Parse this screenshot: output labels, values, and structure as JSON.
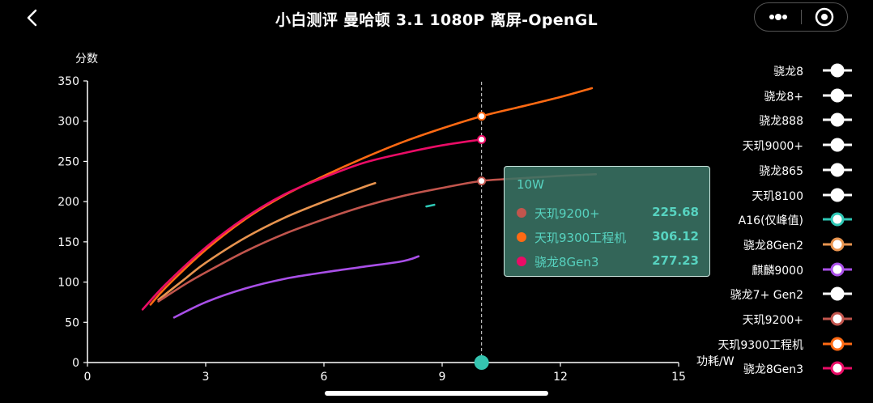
{
  "header": {
    "title": "小白测评 曼哈顿 3.1 1080P 离屏-OpenGL",
    "back_icon": "chevron-left-icon",
    "more_icon": "more-dots-icon",
    "close_icon": "target-close-icon"
  },
  "tooltip": {
    "title": "10W",
    "rows": [
      {
        "name": "天玑9200+",
        "value": "225.68",
        "color": "#c2554d"
      },
      {
        "name": "天玑9300工程机",
        "value": "306.12",
        "color": "#ff6a13"
      },
      {
        "name": "骁龙8Gen3",
        "value": "277.23",
        "color": "#ea0c66"
      }
    ]
  },
  "chart_data": {
    "type": "line",
    "ylabel": "分数",
    "xlabel": "功耗/W",
    "xlim": [
      0,
      15
    ],
    "ylim": [
      0,
      350
    ],
    "xticks": [
      0,
      3,
      6,
      9,
      12,
      15
    ],
    "yticks": [
      0,
      50,
      100,
      150,
      200,
      250,
      300,
      350
    ],
    "grid": false,
    "legend_position": "right",
    "crosshair_x": 10,
    "series": [
      {
        "name": "骁龙8",
        "color": "#ffffff",
        "active": false,
        "x": [],
        "y": []
      },
      {
        "name": "骁龙8+",
        "color": "#ffffff",
        "active": false,
        "x": [],
        "y": []
      },
      {
        "name": "骁龙888",
        "color": "#ffffff",
        "active": false,
        "x": [],
        "y": []
      },
      {
        "name": "天玑9000+",
        "color": "#ffffff",
        "active": false,
        "x": [],
        "y": []
      },
      {
        "name": "骁龙865",
        "color": "#ffffff",
        "active": false,
        "x": [],
        "y": []
      },
      {
        "name": "天玑8100",
        "color": "#ffffff",
        "active": false,
        "x": [],
        "y": []
      },
      {
        "name": "A16(仅峰值)",
        "color": "#2ec7b5",
        "active": true,
        "x": [
          8.6,
          8.8
        ],
        "y": [
          194,
          196
        ]
      },
      {
        "name": "骁龙8Gen2",
        "color": "#e8944f",
        "active": true,
        "x": [
          1.8,
          2.5,
          3.0,
          4.0,
          5.0,
          6.0,
          7.0,
          7.3
        ],
        "y": [
          78,
          105,
          124,
          155,
          180,
          200,
          218,
          223
        ]
      },
      {
        "name": "麒麟9000",
        "color": "#a94fe8",
        "active": true,
        "x": [
          2.2,
          3.0,
          4.0,
          5.0,
          6.0,
          7.0,
          8.0,
          8.4
        ],
        "y": [
          56,
          75,
          92,
          104,
          112,
          119,
          126,
          132
        ]
      },
      {
        "name": "骁龙7+ Gen2",
        "color": "#ffffff",
        "active": false,
        "x": [],
        "y": []
      },
      {
        "name": "天玑9200+",
        "color": "#c2554d",
        "active": true,
        "x": [
          1.8,
          2.5,
          3.0,
          4.0,
          5.0,
          6.0,
          7.0,
          8.0,
          9.0,
          10.0,
          11.0,
          12.0,
          12.9
        ],
        "y": [
          76,
          98,
          112,
          138,
          160,
          178,
          194,
          207,
          217,
          225.68,
          229,
          232,
          234
        ]
      },
      {
        "name": "天玑9300工程机",
        "color": "#ff6a13",
        "active": true,
        "x": [
          1.6,
          2.0,
          3.0,
          4.0,
          5.0,
          6.0,
          7.0,
          8.0,
          9.0,
          10.0,
          11.0,
          12.0,
          12.8
        ],
        "y": [
          72,
          94,
          140,
          178,
          208,
          232,
          254,
          274,
          291,
          306.12,
          318,
          330,
          341
        ]
      },
      {
        "name": "骁龙8Gen3",
        "color": "#ea0c66",
        "active": true,
        "x": [
          1.4,
          2.0,
          3.0,
          4.0,
          5.0,
          6.0,
          7.0,
          8.0,
          9.0,
          10.0
        ],
        "y": [
          66,
          98,
          143,
          180,
          209,
          230,
          248,
          260,
          270,
          277.23
        ]
      }
    ]
  }
}
